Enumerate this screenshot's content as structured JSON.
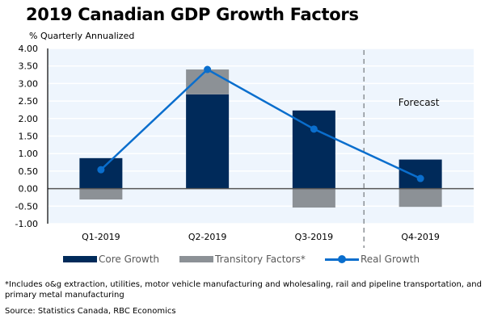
{
  "header": {
    "title": "2019 Canadian GDP Growth Factors",
    "subtitle": "% Quarterly Annualized"
  },
  "colors": {
    "core": "#002a5a",
    "transitory": "#8c9196",
    "real": "#0a6ecd",
    "plot_bg": "#eef5fd",
    "forecast_divider": "#8c9196"
  },
  "chart_data": {
    "type": "bar",
    "stacked": true,
    "title": "2019 Canadian GDP Growth Factors",
    "ylabel": "% Quarterly Annualized",
    "xlabel": "",
    "categories": [
      "Q1-2019",
      "Q2-2019",
      "Q3-2019",
      "Q4-2019"
    ],
    "ylim": [
      -1.0,
      4.0
    ],
    "yticks": [
      "4.00",
      "3.50",
      "3.00",
      "2.50",
      "2.00",
      "1.50",
      "1.00",
      "0.50",
      "0.00",
      "-0.50",
      "-1.00"
    ],
    "ytick_values": [
      4.0,
      3.5,
      3.0,
      2.5,
      2.0,
      1.5,
      1.0,
      0.5,
      0.0,
      -0.5,
      -1.0
    ],
    "grid": true,
    "series": [
      {
        "name": "Core Growth",
        "type": "bar",
        "values": [
          0.87,
          2.69,
          2.23,
          0.83
        ]
      },
      {
        "name": "Transitory Factors*",
        "type": "bar",
        "values": [
          -0.31,
          0.71,
          -0.54,
          -0.52
        ]
      },
      {
        "name": "Real Growth",
        "type": "line",
        "values": [
          0.54,
          3.4,
          1.7,
          0.29
        ]
      }
    ],
    "annotations": [
      {
        "text": "Forecast",
        "applies_to": "Q4-2019",
        "divider": "dashed vertical line between Q3-2019 and Q4-2019"
      }
    ],
    "legend": {
      "placement": "bottom",
      "entries": [
        "Core Growth",
        "Transitory Factors*",
        "Real Growth"
      ]
    }
  },
  "footnote": "*Includes o&g extraction, utilities, motor vehicle manufacturing and wholesaling, rail and pipeline transportation, and primary metal manufacturing",
  "source": "Source: Statistics Canada, RBC Economics"
}
